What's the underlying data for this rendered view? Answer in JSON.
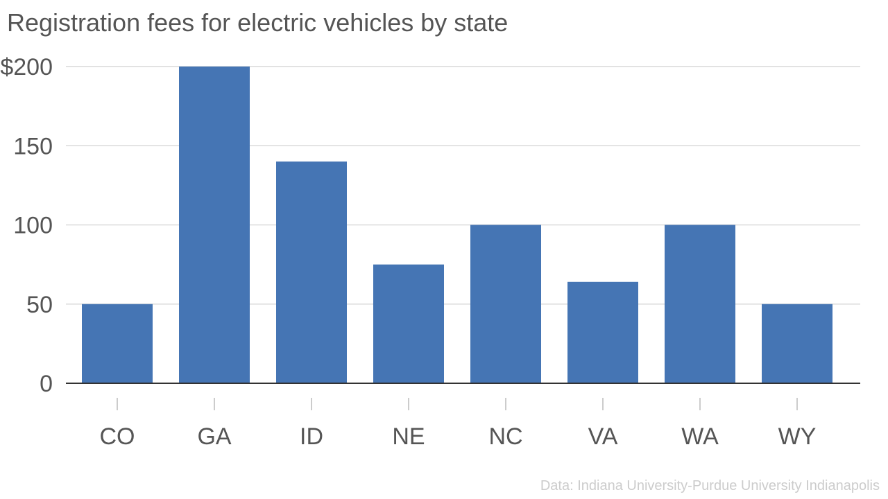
{
  "chart_data": {
    "type": "bar",
    "title": "Registration fees for electric vehicles by state",
    "categories": [
      "CO",
      "GA",
      "ID",
      "NE",
      "NC",
      "VA",
      "WA",
      "WY"
    ],
    "values": [
      50,
      200,
      140,
      75,
      100,
      64,
      100,
      50
    ],
    "ylim": [
      0,
      200
    ],
    "yticks": [
      0,
      50,
      100,
      150,
      200
    ],
    "ytick_labels": [
      "0",
      "50",
      "100",
      "150",
      "$200"
    ],
    "xlabel": "",
    "ylabel": "",
    "grid": "horizontal",
    "bar_color": "#4575b4",
    "source": "Data: Indiana University-Purdue University Indianapolis"
  }
}
